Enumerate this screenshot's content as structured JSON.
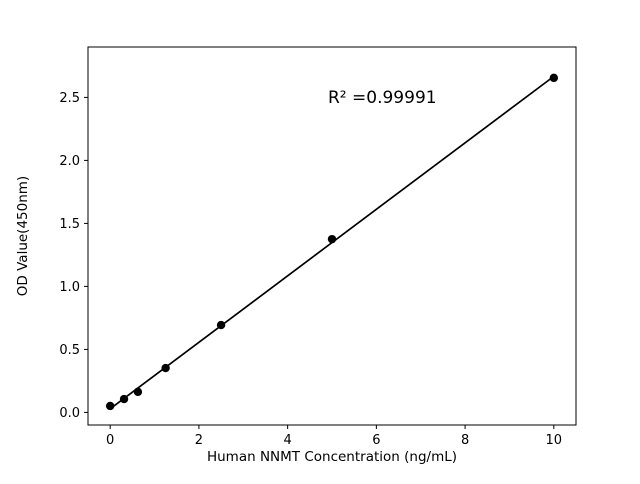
{
  "chart_data": {
    "type": "scatter",
    "title": "",
    "xlabel": "Human NNMT Concentration (ng/mL)",
    "ylabel": "OD Value(450nm)",
    "x": [
      0,
      0.3125,
      0.625,
      1.25,
      2.5,
      5,
      10
    ],
    "y": [
      0.051,
      0.106,
      0.163,
      0.352,
      0.693,
      1.375,
      2.655
    ],
    "xlim": [
      -0.5,
      10.5
    ],
    "ylim": [
      -0.1,
      2.9
    ],
    "xticks": [
      0,
      2,
      4,
      6,
      8,
      10
    ],
    "yticks": [
      0.0,
      0.5,
      1.0,
      1.5,
      2.0,
      2.5
    ],
    "grid": false,
    "legend": null,
    "fit": "linear",
    "annotation": {
      "text": "R² =0.99991"
    },
    "marker_color": "#000000",
    "line_color": "#000000",
    "axis_color": "#000000",
    "background": "#ffffff"
  }
}
